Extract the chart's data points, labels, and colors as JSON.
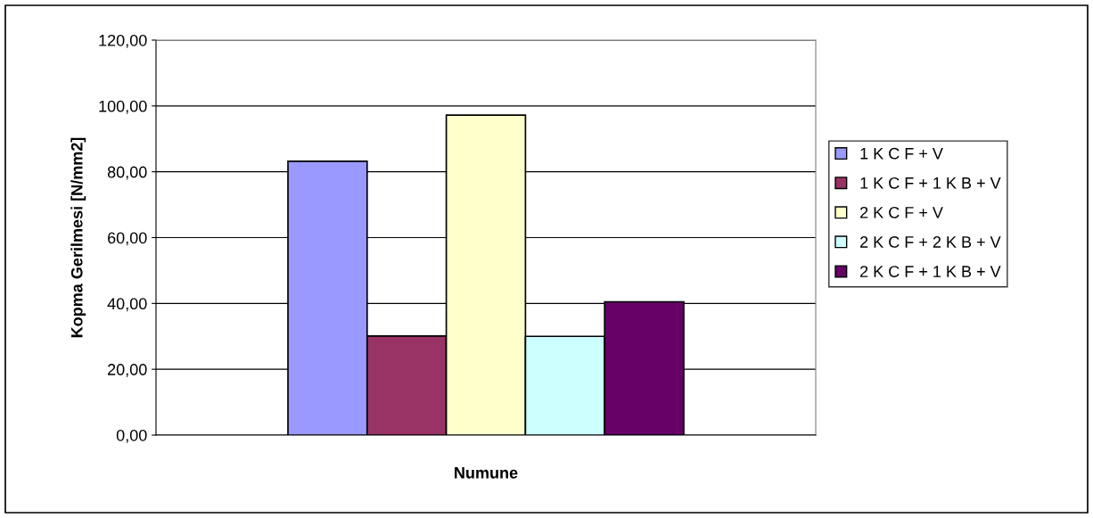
{
  "chart_data": {
    "type": "bar",
    "xlabel": "Numune",
    "ylabel": "Kopma Gerilmesi [N/mm2]",
    "categories": [
      null
    ],
    "series": [
      {
        "name": "1 K C F + V",
        "color": "#9999ff",
        "values": [
          83.2
        ]
      },
      {
        "name": "1 K C F + 1 K B + V",
        "color": "#993366",
        "values": [
          30.1
        ]
      },
      {
        "name": "2 K C F + V",
        "color": "#ffffcc",
        "values": [
          97.2
        ]
      },
      {
        "name": "2 K C F + 2 K B + V",
        "color": "#ccffff",
        "values": [
          30.0
        ]
      },
      {
        "name": "2 K C F + 1 K B + V",
        "color": "#660066",
        "values": [
          40.5
        ]
      }
    ],
    "ylim": [
      0,
      120
    ],
    "yticks": [
      {
        "value": 0,
        "label": "0,00"
      },
      {
        "value": 20,
        "label": "20,00"
      },
      {
        "value": 40,
        "label": "40,00"
      },
      {
        "value": 60,
        "label": "60,00"
      },
      {
        "value": 80,
        "label": "80,00"
      },
      {
        "value": 100,
        "label": "100,00"
      },
      {
        "value": 120,
        "label": "120,00"
      }
    ],
    "grid": "y",
    "legend": "right"
  }
}
